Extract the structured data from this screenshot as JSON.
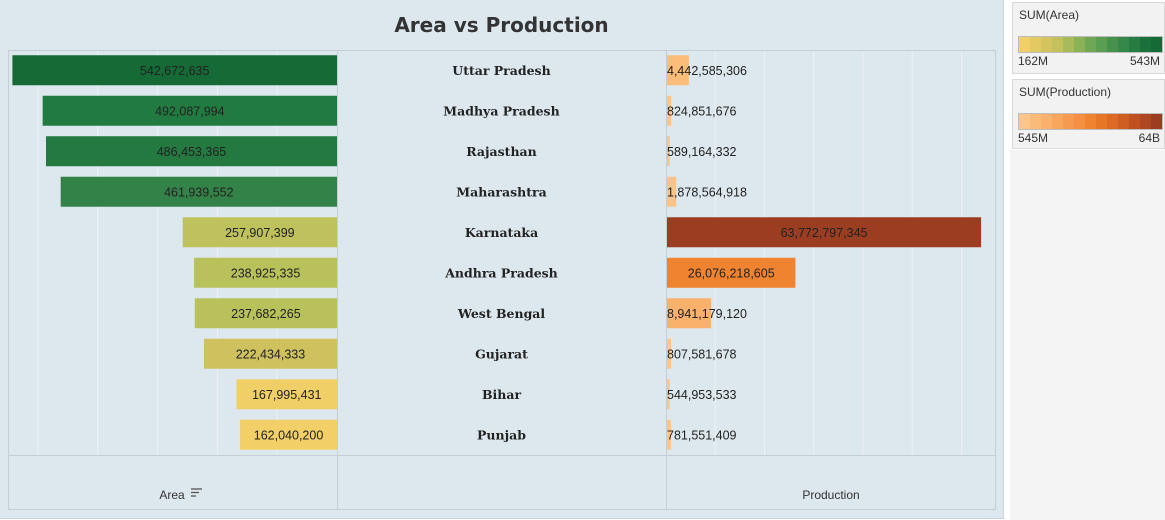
{
  "title": "Area vs Production",
  "chart_data": {
    "type": "bar",
    "title": "Area vs Production",
    "categories": [
      "Uttar Pradesh",
      "Madhya Pradesh",
      "Rajasthan",
      "Maharashtra",
      "Karnataka",
      "Andhra Pradesh",
      "West Bengal",
      "Gujarat",
      "Bihar",
      "Punjab"
    ],
    "series": [
      {
        "name": "Area",
        "values": [
          542672635,
          492087994,
          486453365,
          461939552,
          257907399,
          238925335,
          237682265,
          222434333,
          167995431,
          162040200
        ],
        "labels": [
          "542,672,635",
          "492,087,994",
          "486,453,365",
          "461,939,552",
          "257,907,399",
          "238,925,335",
          "237,682,265",
          "222,434,333",
          "167,995,431",
          "162,040,200"
        ],
        "colors": [
          "#156a36",
          "#217a40",
          "#23793f",
          "#338349",
          "#bec15c",
          "#b9c15b",
          "#b9c15b",
          "#cfc25e",
          "#f1cf67",
          "#f2cf67"
        ]
      },
      {
        "name": "Production",
        "values": [
          4442585306,
          824851676,
          589164332,
          1878564918,
          63772797345,
          26076218605,
          8941179120,
          807581678,
          544953533,
          781551409
        ],
        "labels": [
          "4,442,585,306",
          "824,851,676",
          "589,164,332",
          "1,878,564,918",
          "63,772,797,345",
          "26,076,218,605",
          "8,941,179,120",
          "807,581,678",
          "544,953,533",
          "781,551,409"
        ],
        "colors": [
          "#fbbd79",
          "#fcc68a",
          "#fcc68a",
          "#fbc385",
          "#9b3d21",
          "#f0832f",
          "#f9b16c",
          "#fcc68a",
          "#fcc68a",
          "#fcc68a"
        ]
      }
    ],
    "xlabel_left": "Area",
    "xlabel_right": "Production",
    "area_xlim": [
      0,
      550000000
    ],
    "production_xlim": [
      0,
      67000000000
    ],
    "grid": true
  },
  "legends": [
    {
      "title": "SUM(Area)",
      "min_label": "162M",
      "max_label": "543M",
      "colors": [
        "#f2cf67",
        "#e3c962",
        "#d3c45f",
        "#c2c15c",
        "#a8bb5a",
        "#8cb258",
        "#70a755",
        "#5a9e53",
        "#46924c",
        "#358849",
        "#267c43",
        "#1a713c",
        "#156a36"
      ]
    },
    {
      "title": "SUM(Production)",
      "min_label": "545M",
      "max_label": "64B",
      "colors": [
        "#fcc68a",
        "#fbbb78",
        "#f9b16c",
        "#f8a55e",
        "#f69a50",
        "#f48f43",
        "#f0832f",
        "#e87627",
        "#dd6a24",
        "#cf5e22",
        "#c05221",
        "#ae4721",
        "#9b3d21"
      ]
    }
  ]
}
